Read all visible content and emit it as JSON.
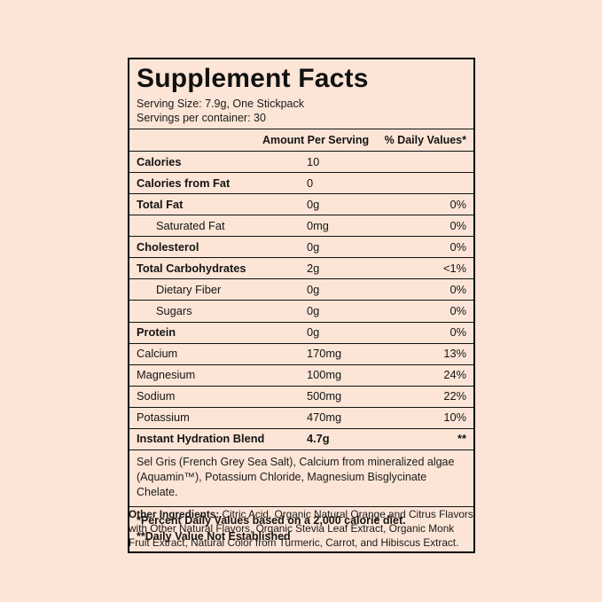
{
  "label": {
    "title": "Supplement Facts",
    "serving_size": "Serving Size: 7.9g, One Stickpack",
    "servings_per_container": "Servings per container: 30",
    "header": {
      "amount": "Amount Per Serving",
      "dv": "% Daily Values*"
    },
    "rows": [
      {
        "name": "Calories",
        "amount": "10",
        "dv": "",
        "bold": true,
        "indent": false
      },
      {
        "name": "Calories from Fat",
        "amount": "0",
        "dv": "",
        "bold": true,
        "indent": false
      },
      {
        "name": "Total Fat",
        "amount": "0g",
        "dv": "0%",
        "bold": true,
        "indent": false
      },
      {
        "name": "Saturated Fat",
        "amount": "0mg",
        "dv": "0%",
        "bold": false,
        "indent": true
      },
      {
        "name": "Cholesterol",
        "amount": "0g",
        "dv": "0%",
        "bold": true,
        "indent": false
      },
      {
        "name": "Total Carbohydrates",
        "amount": "2g",
        "dv": "<1%",
        "bold": true,
        "indent": false
      },
      {
        "name": "Dietary Fiber",
        "amount": "0g",
        "dv": "0%",
        "bold": false,
        "indent": true
      },
      {
        "name": "Sugars",
        "amount": "0g",
        "dv": "0%",
        "bold": false,
        "indent": true
      },
      {
        "name": "Protein",
        "amount": "0g",
        "dv": "0%",
        "bold": true,
        "indent": false
      },
      {
        "name": "Calcium",
        "amount": "170mg",
        "dv": "13%",
        "bold": false,
        "indent": false
      },
      {
        "name": "Magnesium",
        "amount": "100mg",
        "dv": "24%",
        "bold": false,
        "indent": false
      },
      {
        "name": "Sodium",
        "amount": "500mg",
        "dv": "22%",
        "bold": false,
        "indent": false
      },
      {
        "name": "Potassium",
        "amount": "470mg",
        "dv": "10%",
        "bold": false,
        "indent": false
      }
    ],
    "blend": {
      "name": "Instant Hydration Blend",
      "amount": "4.7g",
      "dv": "**",
      "description": "Sel Gris (French Grey Sea Salt), Calcium from mineralized algae (Aquamin™), Potassium Chloride, Magnesium Bisglycinate Chelate."
    },
    "footnotes": {
      "line1": "*Percent Daily Values based on a 2,000 calorie diet.",
      "line2": "**Daily Value Not Established"
    },
    "other_ingredients": {
      "label": "Other Ingredients:",
      "text": " Citric Acid, Organic Natural Orange and Citrus Flavors with Other Natural Flavors, Organic Stevia Leaf Extract, Organic Monk Fruit Extract, Natural Color from Turmeric, Carrot, and Hibiscus Extract."
    }
  }
}
